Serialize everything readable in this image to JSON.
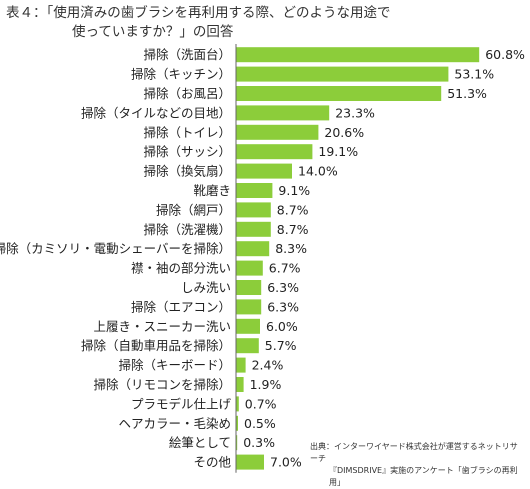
{
  "title": {
    "line1": "表４：「使用済みの歯ブラシを再利用する際、どのような用途で",
    "line2": "使っていますか？」の回答"
  },
  "source": {
    "line1": "出典：インターワイヤード株式会社が運営するネットリサーチ",
    "line2": "『DIMSDRIVE』実施のアンケート「歯ブラシの再利用」"
  },
  "colors": {
    "bar": "#8ccd3a"
  },
  "chart_data": {
    "type": "bar",
    "orientation": "horizontal",
    "unit": "%",
    "categories": [
      "掃除（洗面台）",
      "掃除（キッチン）",
      "掃除（お風呂）",
      "掃除（タイルなどの目地）",
      "掃除（トイレ）",
      "掃除（サッシ）",
      "掃除（換気扇）",
      "靴磨き",
      "掃除（網戸）",
      "掃除（洗濯機）",
      "掃除（カミソリ・電動シェーバーを掃除）",
      "襟・袖の部分洗い",
      "しみ洗い",
      "掃除（エアコン）",
      "上履き・スニーカー洗い",
      "掃除（自動車用品を掃除）",
      "掃除（キーボード）",
      "掃除（リモコンを掃除）",
      "プラモデル仕上げ",
      "ヘアカラー・毛染め",
      "絵筆として",
      "その他"
    ],
    "values": [
      60.8,
      53.1,
      51.3,
      23.3,
      20.6,
      19.1,
      14.0,
      9.1,
      8.7,
      8.7,
      8.3,
      6.7,
      6.3,
      6.3,
      6.0,
      5.7,
      2.4,
      1.9,
      0.7,
      0.5,
      0.3,
      7.0
    ],
    "value_labels": [
      "60.8%",
      "53.1%",
      "51.3%",
      "23.3%",
      "20.6%",
      "19.1%",
      "14.0%",
      "9.1%",
      "8.7%",
      "8.7%",
      "8.3%",
      "6.7%",
      "6.3%",
      "6.3%",
      "6.0%",
      "5.7%",
      "2.4%",
      "1.9%",
      "0.7%",
      "0.5%",
      "0.3%",
      "7.0%"
    ],
    "xlim": [
      0,
      70
    ],
    "grid": false,
    "legend": "none"
  }
}
